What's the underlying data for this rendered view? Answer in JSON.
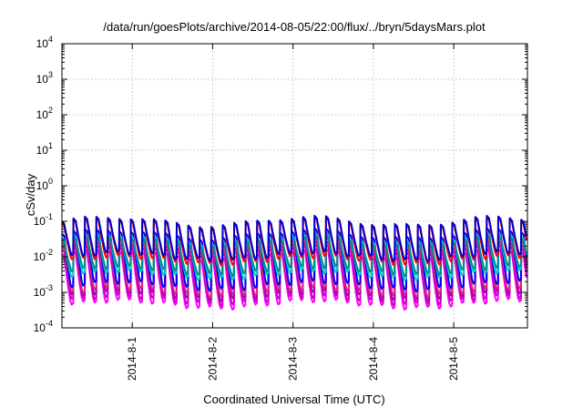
{
  "chart_data": {
    "type": "line",
    "title": "/data/run/goesPlots/archive/2014-08-05/22:00/flux/../bryn/5daysMars.plot",
    "xlabel": "Coordinated Universal Time (UTC)",
    "ylabel": "cSv/day",
    "yscale": "log",
    "ylim": [
      0.0001,
      10000
    ],
    "y_ticks": [
      {
        "base": "10",
        "exp": "-4",
        "value": 0.0001
      },
      {
        "base": "10",
        "exp": "-3",
        "value": 0.001
      },
      {
        "base": "10",
        "exp": "-2",
        "value": 0.01
      },
      {
        "base": "10",
        "exp": "-1",
        "value": 0.1
      },
      {
        "base": "10",
        "exp": "0",
        "value": 1
      },
      {
        "base": "10",
        "exp": "1",
        "value": 10
      },
      {
        "base": "10",
        "exp": "2",
        "value": 100
      },
      {
        "base": "10",
        "exp": "3",
        "value": 1000
      },
      {
        "base": "10",
        "exp": "4",
        "value": 10000
      }
    ],
    "xlim": [
      "2014-07-31 03:00",
      "2014-08-05 22:00"
    ],
    "x_ticks": [
      "2014-8-1",
      "2014-8-2",
      "2014-8-3",
      "2014-8-4",
      "2014-8-5"
    ],
    "grid": true,
    "periods_per_day": 7,
    "series": [
      {
        "color": "#ff00ff",
        "peak": 0.012,
        "trough": 0.00045
      },
      {
        "color": "#cc00cc",
        "peak": 0.016,
        "trough": 0.0006
      },
      {
        "color": "#aa00aa",
        "peak": 0.02,
        "trough": 0.0008
      },
      {
        "color": "#dd2288",
        "peak": 0.025,
        "trough": 0.001
      },
      {
        "color": "#0000ff",
        "peak": 0.045,
        "trough": 0.0015
      },
      {
        "color": "#00cccc",
        "peak": 0.035,
        "trough": 0.003
      },
      {
        "color": "#008b8b",
        "peak": 0.03,
        "trough": 0.004
      },
      {
        "color": "#ff0000",
        "peak": 0.09,
        "trough": 0.008
      },
      {
        "color": "#0000cc",
        "peak": 0.1,
        "trough": 0.01
      }
    ]
  }
}
